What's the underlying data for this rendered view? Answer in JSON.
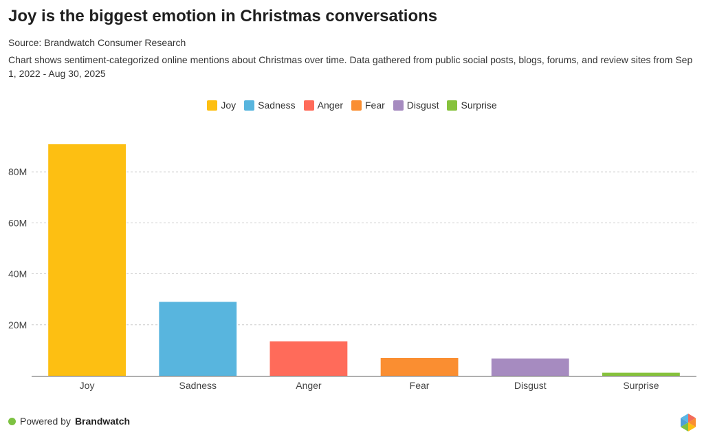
{
  "header": {
    "title": "Joy is the biggest emotion in Christmas conversations",
    "source": "Source: Brandwatch Consumer Research",
    "description": "Chart shows sentiment-categorized online mentions about Christmas over time. Data gathered from public social posts, blogs, forums, and review sites from Sep 1, 2022 - Aug 30, 2025"
  },
  "chart_data": {
    "type": "bar",
    "title": "Joy is the biggest emotion in Christmas conversations",
    "xlabel": "",
    "ylabel": "",
    "categories": [
      "Joy",
      "Sadness",
      "Anger",
      "Fear",
      "Disgust",
      "Surprise"
    ],
    "values": [
      90800000,
      29000000,
      13500000,
      7000000,
      6800000,
      1200000
    ],
    "colors": [
      "#FDBF12",
      "#58B5DE",
      "#FF6B5A",
      "#FA8E31",
      "#A68BC0",
      "#86C23C"
    ],
    "ylim": [
      0,
      90800000
    ],
    "yticks": [
      20000000,
      40000000,
      60000000,
      80000000
    ],
    "ytick_labels": [
      "20M",
      "40M",
      "60M",
      "80M"
    ],
    "grid": true,
    "legend_position": "top-center"
  },
  "legend": {
    "items": [
      {
        "label": "Joy",
        "color": "#FDBF12"
      },
      {
        "label": "Sadness",
        "color": "#58B5DE"
      },
      {
        "label": "Anger",
        "color": "#FF6B5A"
      },
      {
        "label": "Fear",
        "color": "#FA8E31"
      },
      {
        "label": "Disgust",
        "color": "#A68BC0"
      },
      {
        "label": "Surprise",
        "color": "#86C23C"
      }
    ]
  },
  "footer": {
    "powered_by": "Powered by",
    "brand": "Brandwatch",
    "dot_color": "#7DC242"
  }
}
